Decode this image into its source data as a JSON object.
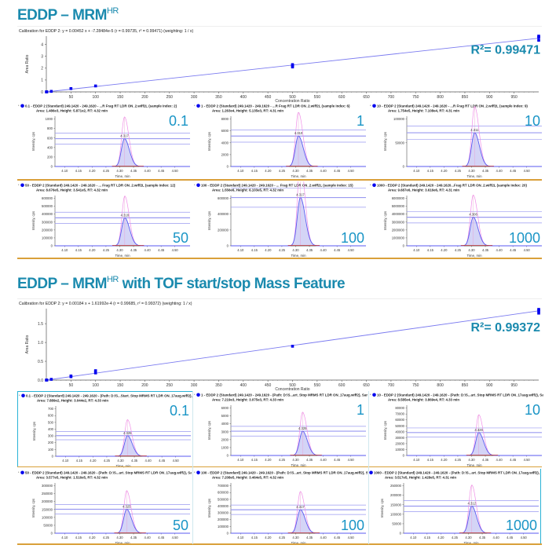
{
  "sections": [
    {
      "title_main": "EDDP – MRM",
      "title_sup": "HR",
      "title_rest": ""
    },
    {
      "title_main": "EDDP – MRM",
      "title_sup": "HR",
      "title_rest": " with  TOF start/stop Mass Feature"
    }
  ],
  "chart_data": [
    {
      "type": "scatter",
      "title": "Calibration for EDDP 2: y = 0.00452 x + -7.28484e-5 (r = 0.99735, r² = 0.99471)  (weighting: 1 / x)",
      "xlabel": "Concentration Ratio",
      "ylabel": "Area Ratio",
      "xlim": [
        0,
        1000
      ],
      "ylim": [
        0,
        4.7
      ],
      "xticks": [
        50,
        100,
        150,
        200,
        250,
        300,
        350,
        400,
        450,
        500,
        550,
        600,
        650,
        700,
        750,
        800,
        850,
        900,
        950
      ],
      "yticks": [
        0,
        1,
        2,
        3,
        4
      ],
      "fit": {
        "slope": 0.00452,
        "intercept": -7.28e-05
      },
      "r2_label": "R²= 0.99471",
      "points": [
        [
          0.1,
          0.0005
        ],
        [
          1,
          0.005
        ],
        [
          10,
          0.045
        ],
        [
          50,
          0.28
        ],
        [
          100,
          0.5
        ],
        [
          500,
          2.1
        ],
        [
          500,
          2.2
        ],
        [
          500,
          2.3
        ],
        [
          1000,
          4.35
        ],
        [
          1000,
          4.6
        ],
        [
          1000,
          4.7
        ]
      ],
      "accent": "#1a8aae",
      "point_color": "#0000ee",
      "line_color": "#7b7bf0"
    },
    {
      "type": "scatter",
      "title": "Calibration for EDDP 2: y = 0.00184 x + 1.61992e-4 (r = 0.99685, r² = 0.99372)  (weighting: 1 / x)",
      "xlabel": "Concentration Ratio",
      "ylabel": "Area Ratio",
      "xlim": [
        0,
        1000
      ],
      "ylim": [
        0,
        1.9
      ],
      "xticks": [
        50,
        100,
        150,
        200,
        250,
        300,
        350,
        400,
        450,
        500,
        550,
        600,
        650,
        700,
        750,
        800,
        850,
        900,
        950
      ],
      "yticks": [
        0.0,
        0.5,
        1.0,
        1.5
      ],
      "fit": {
        "slope": 0.00184,
        "intercept": 0.000162
      },
      "r2_label": "R²= 0.99372",
      "points": [
        [
          0.1,
          0.0003
        ],
        [
          1,
          0.002
        ],
        [
          10,
          0.02
        ],
        [
          50,
          0.09
        ],
        [
          50,
          0.11
        ],
        [
          100,
          0.19
        ],
        [
          100,
          0.23
        ],
        [
          100,
          0.25
        ],
        [
          500,
          0.9
        ],
        [
          1000,
          1.78
        ],
        [
          1000,
          1.84
        ],
        [
          1000,
          1.88
        ]
      ],
      "accent": "#1a8aae",
      "point_color": "#0000ee",
      "line_color": "#7b7bf0"
    }
  ],
  "chromatograms": [
    {
      "conc": "0.1",
      "title": "0.1 - EDDP 2 (Standard) 249.1420 - 249.1620 - ...R Frag RT LDR ON_2.wiff2L (sample Index: 2)",
      "info": "Area: 1.486e3, Height: 5.871e2, RT: 4.32 min",
      "yticks": [
        0,
        200,
        400,
        600,
        800,
        1000
      ],
      "height": 587,
      "rt": 4.317,
      "rt_label": "4.317",
      "label_pos": "top"
    },
    {
      "conc": "1",
      "title": "1 - EDDP 2 (Standard) 249.1420 - 249.1620 - ...R Frag RT LDR ON_2.wiff2L (sample Index: 6)",
      "info": "Area: 1.263e4, Height: 5.135e3, RT: 4.31 min",
      "yticks": [
        0,
        2000,
        4000,
        6000,
        8000
      ],
      "height": 5135,
      "rt": 4.31,
      "rt_label": "4.310",
      "label_pos": "top"
    },
    {
      "conc": "10",
      "title": "10 - EDDP 2 (Standard) 249.1420 - 249.1620 - ...R Frag RT LDR ON_2.wiff2L (sample Index: 9)",
      "info": "Area: 1.754e5, Height: 7.108e4, RT: 4.31 min",
      "yticks": [
        0,
        50000,
        100000
      ],
      "height": 71080,
      "rt": 4.311,
      "rt_label": "4.311",
      "label_pos": "top"
    },
    {
      "conc": "50",
      "title": "50 - EDDP 2 (Standard) 249.1420 - 249.1620 - ... Frag RT LDR ON_2.wiff2L (sample Index: 12)",
      "info": "Area: 8.676e5, Height: 3.541e5, RT: 4.32 min",
      "yticks": [
        0,
        100000,
        200000,
        300000,
        400000,
        500000,
        600000
      ],
      "height": 354100,
      "rt": 4.318,
      "rt_label": "4.318",
      "label_pos": "bottom"
    },
    {
      "conc": "100",
      "title": "100 - EDDP 2 (Standard) 249.1420 - 249.1620 - ... Frag RT LDR ON_2.wiff2L (sample Index: 15)",
      "info": "Area: 1.556e6, Height: 6.103e5, RT: 4.32 min",
      "yticks": [
        0,
        200000,
        400000,
        600000
      ],
      "height": 610300,
      "rt": 4.317,
      "rt_label": "4.317",
      "label_pos": "bottom"
    },
    {
      "conc": "1000",
      "title": "1000 - EDDP 2 (Standard) 249.1420 - 249.1620...Frag RT LDR ON_2.wiff2L (sample Index: 20)",
      "info": "Area: 9.687e6, Height: 3.616e6, RT: 4.31 min",
      "yticks": [
        0,
        1000000,
        2000000,
        3000000,
        4000000,
        5000000,
        6000000
      ],
      "height": 3616000,
      "rt": 4.306,
      "rt_label": "4.306",
      "label_pos": "bottom"
    },
    {
      "conc": "0.1",
      "title": "0.1 - EDDP 2 (Standard) 249.1420 - 249.1620 - (Path: D:\\S...Start_Stop MRMS RT LDR ON_17aug.wiff2), Sample Index: 3)",
      "info": "Area: 7.889e2, Height: 3.044e2, RT: 4.33 min",
      "yticks": [
        0,
        100,
        200,
        300,
        400,
        500,
        600,
        700
      ],
      "height": 304,
      "rt": 4.325,
      "rt_label": "4.325",
      "label_pos": "top"
    },
    {
      "conc": "1",
      "title": "1 - EDDP 2 (Standard) 249.1420 - 249.1620 - (Path: D:\\S...art_Stop MRMS RT LDR ON_17aug.wiff2), Sample Index: 6)",
      "info": "Area: 7.219e3, Height: 3.075e3, RT: 4.33 min",
      "yticks": [
        0,
        1000,
        2000,
        3000,
        4000,
        5000,
        6000
      ],
      "height": 3075,
      "rt": 4.325,
      "rt_label": "4.325",
      "label_pos": "top"
    },
    {
      "conc": "10",
      "title": "10 - EDDP 2 (Standard) 249.1420 - 249.1620 - (Path: D:\\S...art_Stop MRMS RT LDR ON_17aug.wiff2), Sample Index: 10)",
      "info": "Area: 8.585e4, Height: 3.869e4, RT: 4.33 min",
      "yticks": [
        0,
        10000,
        20000,
        30000,
        40000,
        50000,
        60000,
        70000,
        80000
      ],
      "height": 38690,
      "rt": 4.326,
      "rt_label": "4.326",
      "label_pos": "top"
    },
    {
      "conc": "50",
      "title": "50 - EDDP 2 (Standard) 249.1420 - 249.1620 - (Path: D:\\S...art_Stop MRMS RT LDR ON_17aug.wiff2), Sample Index: 13)",
      "info": "Area: 3.577e5, Height: 1.516e5, RT: 4.32 min",
      "yticks": [
        0,
        50000,
        100000,
        150000,
        200000,
        250000,
        300000
      ],
      "height": 151600,
      "rt": 4.325,
      "rt_label": "4.325",
      "label_pos": "bottom"
    },
    {
      "conc": "100",
      "title": "100 - EDDP 2 (Standard) 249.1420 - 249.1620 - (Path: D:\\S...art_Stop MRMS RT LDR ON_17aug.wiff2), Sample Index: 15)",
      "info": "Area: 7.208e5, Height: 3.464e5, RT: 4.32 min",
      "yticks": [
        0,
        100000,
        200000,
        300000,
        400000,
        500000,
        600000,
        700000
      ],
      "height": 346400,
      "rt": 4.317,
      "rt_label": "4.317",
      "label_pos": "bottom"
    },
    {
      "conc": "1000",
      "title": "1000 - EDDP 2 (Standard) 249.1420 - 249.1620 - (Path: D:\\S...art_Stop MRMS RT LDR ON_17aug.wiff2), Sample Index: 21)",
      "info": "Area: 3.517e5, Height: 1.428e5, RT: 4.31 min",
      "yticks": [
        0,
        50000,
        100000,
        150000,
        200000,
        250000
      ],
      "height": 142800,
      "rt": 4.312,
      "rt_label": "4.312",
      "label_pos": "bottom"
    }
  ],
  "chrom_axes": {
    "xlabel": "Time, min",
    "ylabel": "Intensity, cps",
    "xticks": [
      "4.10",
      "4.15",
      "4.20",
      "4.25",
      "4.30",
      "4.35",
      "4.40",
      "4.45",
      "4.50"
    ]
  }
}
